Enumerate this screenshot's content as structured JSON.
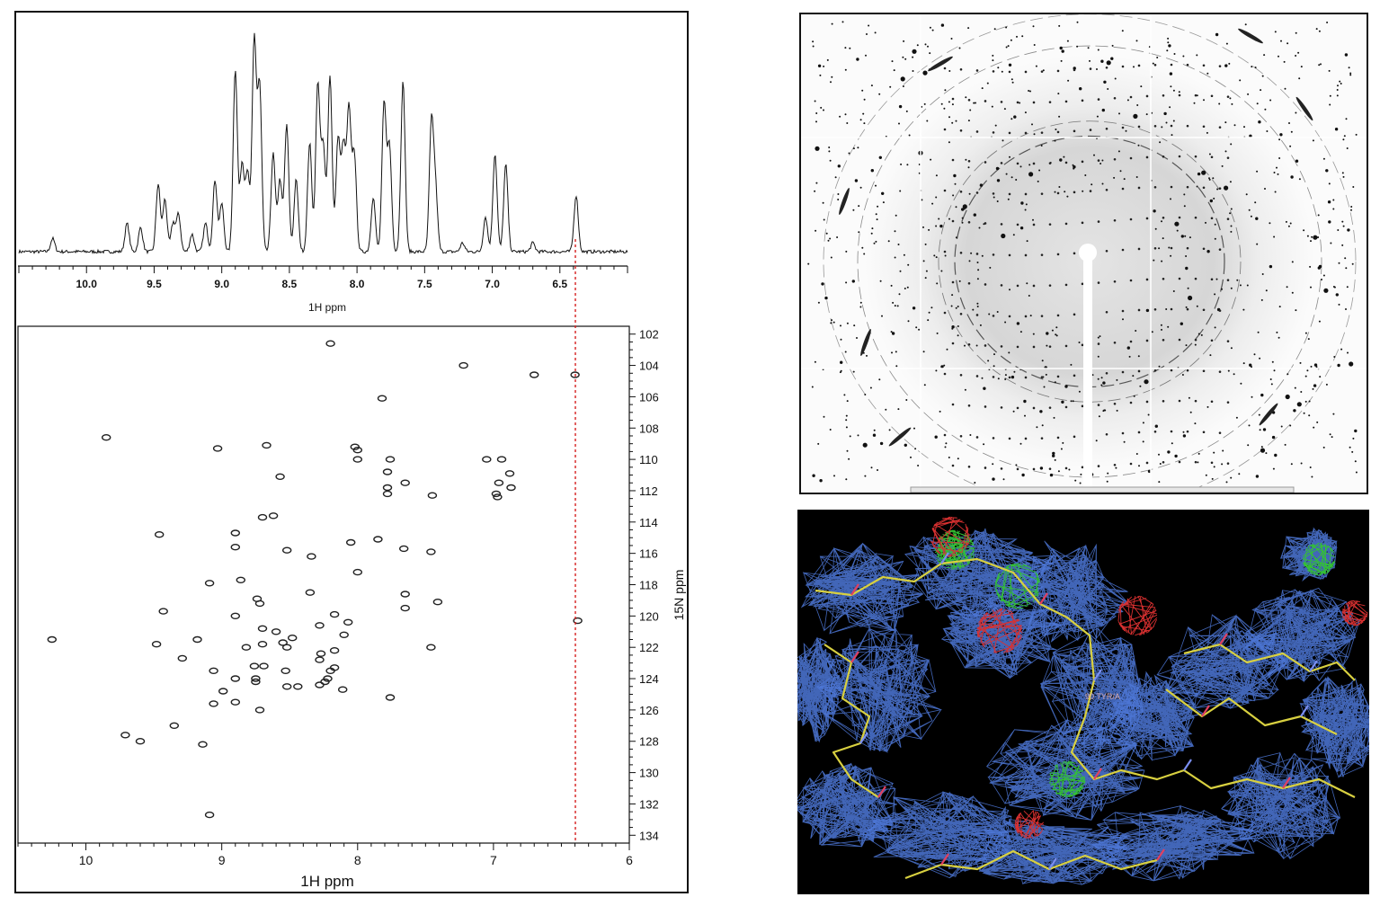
{
  "nmr": {
    "spectrum_1d": {
      "xlabel": "1H ppm",
      "ticks": [
        "10.0",
        "9.5",
        "9.0",
        "8.5",
        "8.0",
        "7.5",
        "7.0",
        "6.5"
      ]
    },
    "hsqc": {
      "xlabel": "1H ppm",
      "ylabel": "15N ppm",
      "xticks": [
        "10",
        "9",
        "8",
        "7",
        "6"
      ],
      "yticks": [
        "102",
        "104",
        "106",
        "108",
        "110",
        "112",
        "114",
        "116",
        "118",
        "120",
        "122",
        "124",
        "126",
        "128",
        "130",
        "132",
        "134"
      ]
    },
    "marker_color": "#d62020"
  },
  "density_map": {
    "residue_label": "90 TYR/A",
    "mesh_color": "#4d78d8",
    "positive_color": "#33c233",
    "negative_color": "#d83030",
    "model_color": "#d8d040"
  },
  "chart_data": [
    {
      "type": "line",
      "xlabel": "1H ppm",
      "xlim": [
        10.5,
        6.0
      ],
      "x_reversed": true,
      "peaks": [
        {
          "x": 10.25,
          "h": 0.06
        },
        {
          "x": 9.7,
          "h": 0.13
        },
        {
          "x": 9.6,
          "h": 0.11
        },
        {
          "x": 9.47,
          "h": 0.31
        },
        {
          "x": 9.42,
          "h": 0.24
        },
        {
          "x": 9.36,
          "h": 0.13
        },
        {
          "x": 9.32,
          "h": 0.17
        },
        {
          "x": 9.22,
          "h": 0.08
        },
        {
          "x": 9.12,
          "h": 0.13
        },
        {
          "x": 9.05,
          "h": 0.33
        },
        {
          "x": 9.0,
          "h": 0.22
        },
        {
          "x": 8.9,
          "h": 0.84
        },
        {
          "x": 8.85,
          "h": 0.4
        },
        {
          "x": 8.81,
          "h": 0.36
        },
        {
          "x": 8.76,
          "h": 0.97
        },
        {
          "x": 8.72,
          "h": 0.76
        },
        {
          "x": 8.62,
          "h": 0.45
        },
        {
          "x": 8.57,
          "h": 0.33
        },
        {
          "x": 8.52,
          "h": 0.58
        },
        {
          "x": 8.45,
          "h": 0.33
        },
        {
          "x": 8.35,
          "h": 0.5
        },
        {
          "x": 8.29,
          "h": 0.77
        },
        {
          "x": 8.25,
          "h": 0.48
        },
        {
          "x": 8.2,
          "h": 0.81
        },
        {
          "x": 8.14,
          "h": 0.52
        },
        {
          "x": 8.1,
          "h": 0.48
        },
        {
          "x": 8.06,
          "h": 0.65
        },
        {
          "x": 8.02,
          "h": 0.45
        },
        {
          "x": 7.88,
          "h": 0.25
        },
        {
          "x": 7.8,
          "h": 0.68
        },
        {
          "x": 7.76,
          "h": 0.48
        },
        {
          "x": 7.66,
          "h": 0.78
        },
        {
          "x": 7.45,
          "h": 0.58
        },
        {
          "x": 7.42,
          "h": 0.28
        },
        {
          "x": 7.22,
          "h": 0.04
        },
        {
          "x": 7.05,
          "h": 0.16
        },
        {
          "x": 6.98,
          "h": 0.45
        },
        {
          "x": 6.9,
          "h": 0.4
        },
        {
          "x": 6.7,
          "h": 0.04
        },
        {
          "x": 6.38,
          "h": 0.26
        }
      ]
    },
    {
      "type": "scatter",
      "xlabel": "1H ppm",
      "ylabel": "15N ppm",
      "xlim": [
        10.5,
        6.0
      ],
      "ylim": [
        101.5,
        134.5
      ],
      "y_reversed": true,
      "points": [
        [
          8.2,
          102.6
        ],
        [
          7.22,
          104.0
        ],
        [
          6.7,
          104.6
        ],
        [
          6.4,
          104.6
        ],
        [
          7.82,
          106.1
        ],
        [
          9.85,
          108.6
        ],
        [
          9.03,
          109.3
        ],
        [
          8.67,
          109.1
        ],
        [
          8.02,
          109.2
        ],
        [
          8.0,
          109.4
        ],
        [
          8.0,
          110.0
        ],
        [
          7.76,
          110.0
        ],
        [
          7.05,
          110.0
        ],
        [
          6.94,
          110.0
        ],
        [
          6.88,
          110.9
        ],
        [
          7.78,
          110.8
        ],
        [
          7.65,
          111.5
        ],
        [
          6.96,
          111.5
        ],
        [
          7.78,
          111.8
        ],
        [
          7.78,
          112.2
        ],
        [
          6.98,
          112.2
        ],
        [
          6.97,
          112.4
        ],
        [
          6.87,
          111.8
        ],
        [
          7.45,
          112.3
        ],
        [
          8.57,
          111.1
        ],
        [
          8.7,
          113.7
        ],
        [
          8.62,
          113.6
        ],
        [
          9.46,
          114.8
        ],
        [
          8.9,
          114.7
        ],
        [
          8.9,
          115.6
        ],
        [
          8.52,
          115.8
        ],
        [
          8.34,
          116.2
        ],
        [
          8.05,
          115.3
        ],
        [
          7.85,
          115.1
        ],
        [
          7.66,
          115.7
        ],
        [
          7.46,
          115.9
        ],
        [
          8.0,
          117.2
        ],
        [
          9.09,
          117.9
        ],
        [
          8.86,
          117.7
        ],
        [
          8.74,
          118.9
        ],
        [
          8.72,
          119.2
        ],
        [
          8.35,
          118.5
        ],
        [
          7.65,
          118.6
        ],
        [
          7.41,
          119.1
        ],
        [
          7.65,
          119.5
        ],
        [
          9.43,
          119.7
        ],
        [
          8.9,
          120.0
        ],
        [
          8.7,
          120.8
        ],
        [
          8.6,
          121.0
        ],
        [
          8.28,
          120.6
        ],
        [
          8.17,
          119.9
        ],
        [
          8.07,
          120.4
        ],
        [
          6.38,
          120.3
        ],
        [
          10.25,
          121.5
        ],
        [
          9.48,
          121.8
        ],
        [
          9.18,
          121.5
        ],
        [
          8.82,
          122.0
        ],
        [
          8.7,
          121.8
        ],
        [
          8.55,
          121.7
        ],
        [
          8.52,
          122.0
        ],
        [
          8.48,
          121.4
        ],
        [
          8.17,
          122.2
        ],
        [
          8.27,
          122.4
        ],
        [
          8.28,
          122.8
        ],
        [
          8.1,
          121.2
        ],
        [
          7.46,
          122.0
        ],
        [
          9.29,
          122.7
        ],
        [
          9.06,
          123.5
        ],
        [
          8.76,
          123.2
        ],
        [
          8.69,
          123.2
        ],
        [
          8.53,
          123.5
        ],
        [
          8.17,
          123.3
        ],
        [
          8.2,
          123.5
        ],
        [
          8.22,
          124.0
        ],
        [
          8.24,
          124.2
        ],
        [
          8.75,
          124.0
        ],
        [
          8.75,
          124.2
        ],
        [
          8.9,
          124.0
        ],
        [
          8.28,
          124.4
        ],
        [
          8.99,
          124.8
        ],
        [
          8.52,
          124.5
        ],
        [
          8.44,
          124.5
        ],
        [
          8.11,
          124.7
        ],
        [
          9.06,
          125.6
        ],
        [
          8.9,
          125.5
        ],
        [
          8.72,
          126.0
        ],
        [
          7.76,
          125.2
        ],
        [
          9.35,
          127.0
        ],
        [
          9.71,
          127.6
        ],
        [
          9.6,
          128.0
        ],
        [
          9.14,
          128.2
        ],
        [
          9.09,
          132.7
        ]
      ]
    }
  ]
}
